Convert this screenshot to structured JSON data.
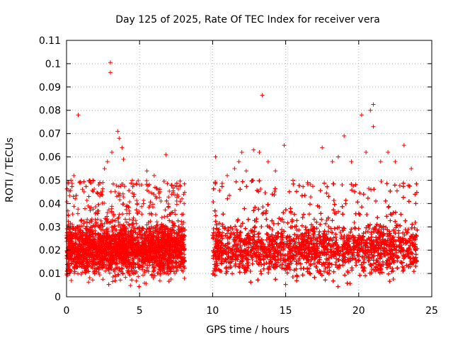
{
  "chart_data": {
    "type": "scatter",
    "title": "Day 125 of 2025, Rate Of TEC Index for receiver vera",
    "xlabel": "GPS time / hours",
    "ylabel": "ROTI / TECUs",
    "xlim": [
      0,
      25
    ],
    "ylim": [
      0,
      0.11
    ],
    "x_ticks": [
      0,
      5,
      10,
      15,
      20,
      25
    ],
    "x_tick_labels": [
      "0",
      "5",
      "10",
      "15",
      "20",
      "25"
    ],
    "y_ticks": [
      0,
      0.01,
      0.02,
      0.03,
      0.04,
      0.05,
      0.06,
      0.07,
      0.08,
      0.09,
      0.1,
      0.11
    ],
    "y_tick_labels": [
      "0",
      "0.01",
      "0.02",
      "0.03",
      "0.04",
      "0.05",
      "0.06",
      "0.07",
      "0.08",
      "0.09",
      "0.1",
      "0.11"
    ],
    "grid": true,
    "legend": "none",
    "marker": "plus",
    "color": "#ff0000",
    "data_gap_hours": [
      8.1,
      10.0
    ],
    "segments": [
      {
        "x_range": [
          0.0,
          8.1
        ],
        "typical_range": [
          0.007,
          0.035
        ]
      },
      {
        "x_range": [
          10.0,
          24.0
        ],
        "typical_range": [
          0.007,
          0.035
        ]
      }
    ],
    "points": [
      [
        0.3,
        0.05
      ],
      [
        0.5,
        0.052
      ],
      [
        0.8,
        0.078
      ],
      [
        1.2,
        0.045
      ],
      [
        1.8,
        0.05
      ],
      [
        2.2,
        0.048
      ],
      [
        2.6,
        0.055
      ],
      [
        2.8,
        0.058
      ],
      [
        3.0,
        0.1005
      ],
      [
        3.0,
        0.0962
      ],
      [
        3.1,
        0.062
      ],
      [
        3.5,
        0.071
      ],
      [
        3.6,
        0.068
      ],
      [
        3.8,
        0.064
      ],
      [
        3.9,
        0.059
      ],
      [
        4.5,
        0.05
      ],
      [
        5.0,
        0.048
      ],
      [
        5.5,
        0.054
      ],
      [
        6.0,
        0.052
      ],
      [
        6.4,
        0.045
      ],
      [
        6.8,
        0.061
      ],
      [
        7.2,
        0.044
      ],
      [
        7.9,
        0.042
      ],
      [
        10.2,
        0.06
      ],
      [
        11.0,
        0.052
      ],
      [
        11.5,
        0.055
      ],
      [
        11.8,
        0.058
      ],
      [
        12.0,
        0.062
      ],
      [
        12.3,
        0.054
      ],
      [
        12.8,
        0.063
      ],
      [
        13.2,
        0.062
      ],
      [
        13.4,
        0.0865
      ],
      [
        13.8,
        0.058
      ],
      [
        14.3,
        0.054
      ],
      [
        14.9,
        0.065
      ],
      [
        15.5,
        0.05
      ],
      [
        16.5,
        0.049
      ],
      [
        17.5,
        0.064
      ],
      [
        18.2,
        0.058
      ],
      [
        18.6,
        0.06
      ],
      [
        19.0,
        0.069
      ],
      [
        19.5,
        0.058
      ],
      [
        20.2,
        0.078
      ],
      [
        20.5,
        0.062
      ],
      [
        20.8,
        0.08
      ],
      [
        21.0,
        0.0825
      ],
      [
        21.0,
        0.073
      ],
      [
        21.5,
        0.058
      ],
      [
        22.0,
        0.062
      ],
      [
        22.5,
        0.058
      ],
      [
        23.1,
        0.065
      ],
      [
        23.6,
        0.055
      ]
    ]
  }
}
